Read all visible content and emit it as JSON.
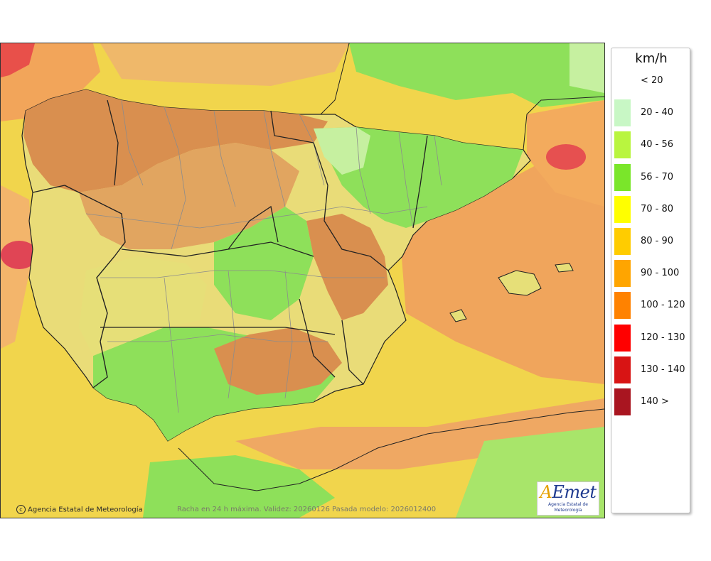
{
  "legend": {
    "title": "km/h",
    "items": [
      {
        "label": "< 20",
        "color": "#ffffff"
      },
      {
        "label": "20 - 40",
        "color": "#c8f7c5"
      },
      {
        "label": "40 - 56",
        "color": "#b9f53f"
      },
      {
        "label": "56 - 70",
        "color": "#7ae62a"
      },
      {
        "label": "70 - 80",
        "color": "#ffff00"
      },
      {
        "label": "80 - 90",
        "color": "#ffcc00"
      },
      {
        "label": "90 - 100",
        "color": "#ffa500"
      },
      {
        "label": "100 - 120",
        "color": "#ff8200"
      },
      {
        "label": "120 - 130",
        "color": "#ff0000"
      },
      {
        "label": "130 - 140",
        "color": "#d81414"
      },
      {
        "label": "140 >",
        "color": "#a91520"
      }
    ]
  },
  "map": {
    "copyright": "Agencia Estatal de Meteorología",
    "caption": "Racha en 24 h máxima. Validez: 20260126 Pasada modelo: 2026012400",
    "logo_word": "AEmet",
    "logo_subtitle": "Agencia Estatal de Meteorología",
    "zone_colors": {
      "sea_base": "#f1d54c",
      "sea_orange": "#f2a55a",
      "sea_red": "#e8504a",
      "land_green": "#8ee05a",
      "land_light_green": "#c6f0a0",
      "land_yellow": "#e6df78",
      "land_orange": "#d98f4f",
      "border_line": "#222222",
      "province_line": "#8c8c8c"
    }
  }
}
